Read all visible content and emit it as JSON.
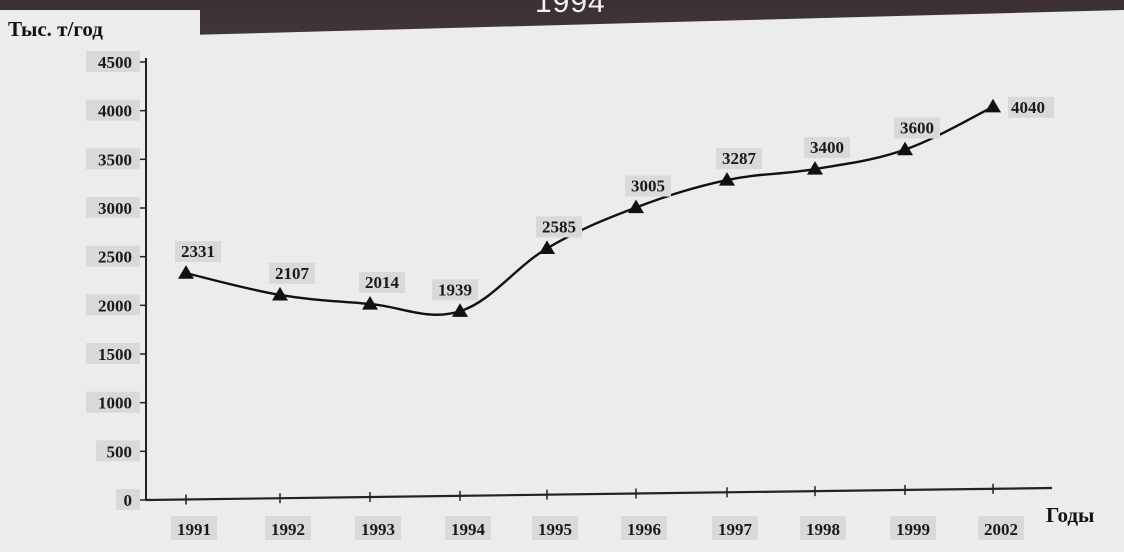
{
  "background": {
    "title_fragment": "1994"
  },
  "chart_data": {
    "type": "line",
    "title": "",
    "ylabel": "Тыс. т/год",
    "xlabel": "Годы",
    "categories": [
      "1991",
      "1992",
      "1993",
      "1994",
      "1995",
      "1996",
      "1997",
      "1998",
      "1999",
      "2002"
    ],
    "series": [
      {
        "values": [
          2331,
          2107,
          2014,
          1939,
          2585,
          3005,
          3287,
          3400,
          3600,
          4040
        ]
      }
    ],
    "data_labels": [
      "2331",
      "2107",
      "2014",
      "1939",
      "2585",
      "3005",
      "3287",
      "3400",
      "3600",
      "4040"
    ],
    "y_ticks": [
      0,
      500,
      1000,
      1500,
      2000,
      2500,
      3000,
      3500,
      4000,
      4500
    ],
    "ylim": [
      0,
      4500
    ],
    "marker": "triangle",
    "line_color": "#111111",
    "grid": false,
    "legend": "none"
  }
}
